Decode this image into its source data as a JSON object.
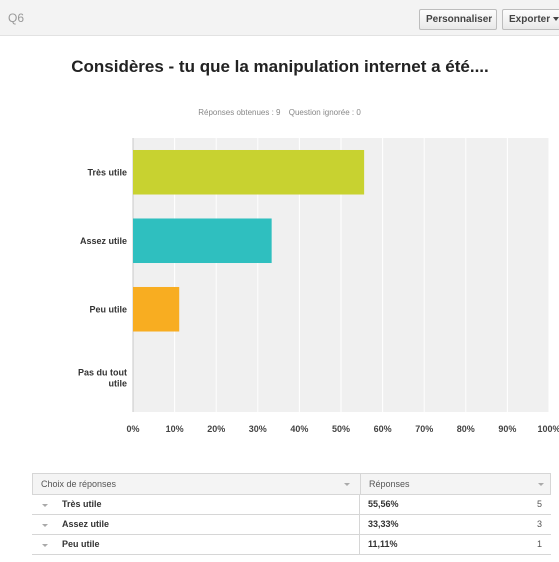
{
  "header": {
    "question_number": "Q6",
    "customize_label": "Personnaliser",
    "export_label": "Exporter"
  },
  "title": "Considères - tu que la manipulation internet a été....",
  "meta": {
    "answered": "Réponses obtenues : 9",
    "skipped": "Question ignorée : 0"
  },
  "chart_data": {
    "type": "bar",
    "orientation": "horizontal",
    "categories": [
      "Très utile",
      "Assez utile",
      "Peu utile",
      "Pas du tout utile"
    ],
    "values": [
      55.56,
      33.33,
      11.11,
      0
    ],
    "colors": [
      "#c8d230",
      "#2fbfbf",
      "#f8ad21",
      "#999999"
    ],
    "xlim": [
      0,
      100
    ],
    "xticks": [
      "0%",
      "10%",
      "20%",
      "30%",
      "40%",
      "50%",
      "60%",
      "70%",
      "80%",
      "90%",
      "100%"
    ],
    "grid": true,
    "plot_background": "#f0f0f0"
  },
  "table": {
    "headers": [
      "Choix de réponses",
      "Réponses"
    ],
    "rows": [
      {
        "label": "Très utile",
        "percent": "55,56%",
        "count": "5"
      },
      {
        "label": "Assez utile",
        "percent": "33,33%",
        "count": "3"
      },
      {
        "label": "Peu utile",
        "percent": "11,11%",
        "count": "1"
      }
    ]
  }
}
